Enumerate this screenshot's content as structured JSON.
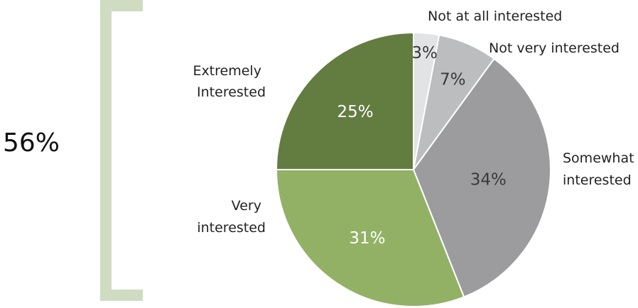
{
  "chart_data": {
    "type": "pie",
    "title": "",
    "slices": [
      {
        "label": "Not at all interested",
        "value": 3,
        "value_label": "3%",
        "color": "#e1e3e4",
        "label_color": "#3a3a3a"
      },
      {
        "label": "Not very interested",
        "value": 7,
        "value_label": "7%",
        "color": "#bcbdbf",
        "label_color": "#3a3a3a"
      },
      {
        "label": "Somewhat interested",
        "value": 34,
        "value_label": "34%",
        "color": "#9c9c9e",
        "label_color": "#3a3a3a"
      },
      {
        "label": "Very interested",
        "value": 31,
        "value_label": "31%",
        "color": "#92b165",
        "label_color": "#ffffff"
      },
      {
        "label": "Extremely Interested",
        "value": 25,
        "value_label": "25%",
        "color": "#637c40",
        "label_color": "#ffffff"
      }
    ],
    "bracket": {
      "label": "56%",
      "color": "#cfdcc2"
    }
  }
}
